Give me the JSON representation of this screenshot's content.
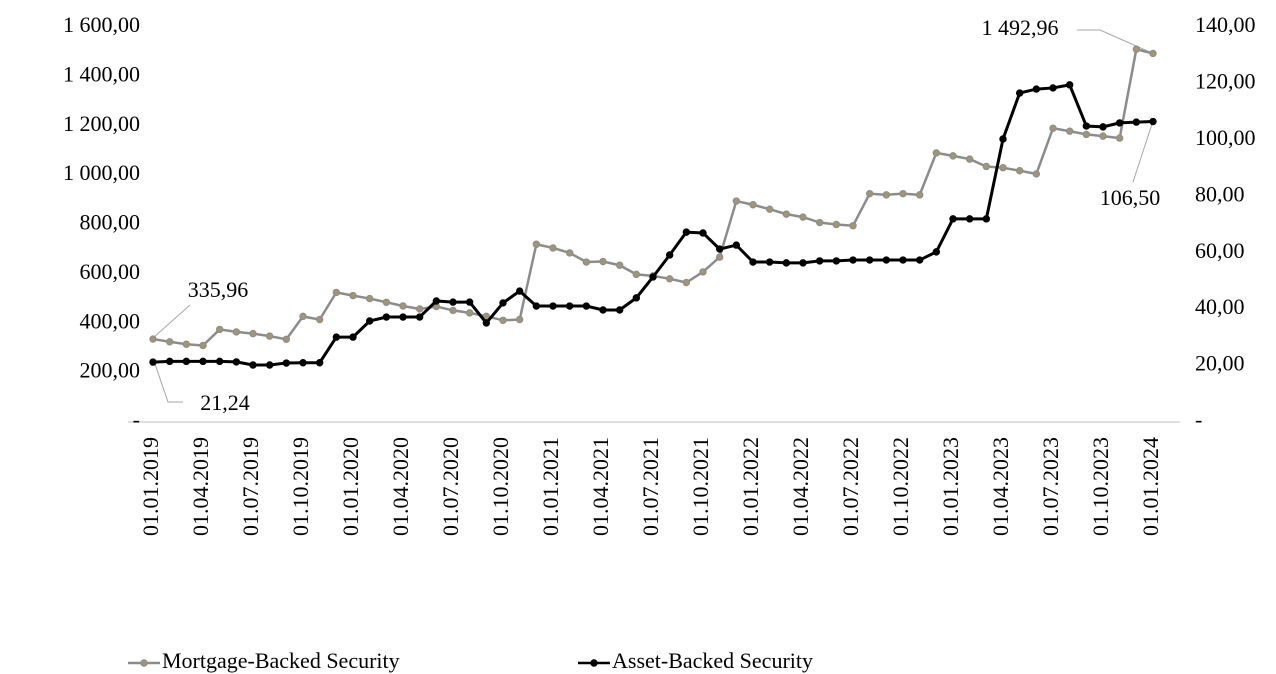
{
  "chart_data": {
    "type": "line",
    "categories": [
      "01.01.2019",
      null,
      null,
      "01.04.2019",
      null,
      null,
      "01.07.2019",
      null,
      null,
      "01.10.2019",
      null,
      null,
      "01.01.2020",
      null,
      null,
      "01.04.2020",
      null,
      null,
      "01.07.2020",
      null,
      null,
      "01.10.2020",
      null,
      null,
      "01.01.2021",
      null,
      null,
      "01.04.2021",
      null,
      null,
      "01.07.2021",
      null,
      null,
      "01.10.2021",
      null,
      null,
      "01.01.2022",
      null,
      null,
      "01.04.2022",
      null,
      null,
      "01.07.2022",
      null,
      null,
      "01.10.2022",
      null,
      null,
      "01.01.2023",
      null,
      null,
      "01.04.2023",
      null,
      null,
      "01.07.2023",
      null,
      null,
      "01.10.2023",
      null,
      null,
      "01.01.2024"
    ],
    "series": [
      {
        "name": "Mortgage-Backed Security",
        "color": "#8c8c8c",
        "marker_color": "#a39478",
        "values": [
          335.96,
          325,
          315,
          310,
          375,
          365,
          358,
          348,
          335,
          428,
          415,
          525,
          512,
          500,
          485,
          470,
          458,
          468,
          452,
          442,
          428,
          412,
          415,
          720,
          705,
          685,
          648,
          650,
          635,
          598,
          592,
          580,
          565,
          608,
          668,
          895,
          880,
          862,
          842,
          830,
          808,
          800,
          795,
          925,
          920,
          925,
          920,
          1090,
          1078,
          1065,
          1035,
          1030,
          1018,
          1005,
          1190,
          1178,
          1165,
          1158,
          1150,
          1510,
          1492.96
        ],
        "value_labels": [
          "335,96",
          null,
          null,
          null,
          null,
          null,
          null,
          null,
          null,
          null,
          null,
          null,
          null,
          null,
          null,
          null,
          null,
          null,
          null,
          null,
          null,
          null,
          null,
          null,
          null,
          null,
          null,
          null,
          null,
          null,
          null,
          null,
          null,
          null,
          null,
          null,
          null,
          null,
          null,
          null,
          null,
          null,
          null,
          null,
          null,
          null,
          null,
          null,
          null,
          null,
          null,
          null,
          null,
          null,
          null,
          null,
          null,
          null,
          null,
          null,
          "1 492,96"
        ]
      },
      {
        "name": "Asset-Backed Security",
        "color": "#000000",
        "marker_color": "#000000",
        "axis": "y2",
        "values": [
          21.24,
          21.5,
          21.5,
          21.5,
          21.5,
          21.3,
          20.2,
          20.2,
          20.9,
          21,
          21,
          30.1,
          30.1,
          35.8,
          37.2,
          37.2,
          37.2,
          42.9,
          42.5,
          42.5,
          35.1,
          42.2,
          46.4,
          41.1,
          41.1,
          41.1,
          41.1,
          39.7,
          39.7,
          44,
          51.4,
          59.2,
          67.3,
          67,
          61.3,
          62.7,
          56.7,
          56.7,
          56.4,
          56.4,
          57.1,
          57.1,
          57.4,
          57.4,
          57.4,
          57.4,
          57.4,
          60.3,
          72,
          72,
          72,
          100.3,
          116.6,
          118,
          118.4,
          119.5,
          104.9,
          104.6,
          106,
          106.3,
          106.5
        ],
        "value_labels": [
          "21,24",
          null,
          null,
          null,
          null,
          null,
          null,
          null,
          null,
          null,
          null,
          null,
          null,
          null,
          null,
          null,
          null,
          null,
          null,
          null,
          null,
          null,
          null,
          null,
          null,
          null,
          null,
          null,
          null,
          null,
          null,
          null,
          null,
          null,
          null,
          null,
          null,
          null,
          null,
          null,
          null,
          null,
          null,
          null,
          null,
          null,
          null,
          null,
          null,
          null,
          null,
          null,
          null,
          null,
          null,
          null,
          null,
          null,
          null,
          null,
          "106,50"
        ]
      }
    ],
    "ylim": [
      0,
      1600
    ],
    "yticks": [
      {
        "value": 0,
        "label": "-"
      },
      {
        "value": 200,
        "label": "200,00"
      },
      {
        "value": 400,
        "label": "400,00"
      },
      {
        "value": 600,
        "label": "600,00"
      },
      {
        "value": 800,
        "label": "800,00"
      },
      {
        "value": 1000,
        "label": "1 000,00"
      },
      {
        "value": 1200,
        "label": "1 200,00"
      },
      {
        "value": 1400,
        "label": "1 400,00"
      },
      {
        "value": 1600,
        "label": "1 600,00"
      }
    ],
    "y2lim": [
      0,
      140
    ],
    "y2ticks": [
      {
        "value": 0,
        "label": "-"
      },
      {
        "value": 20,
        "label": "20,00"
      },
      {
        "value": 40,
        "label": "40,00"
      },
      {
        "value": 60,
        "label": "60,00"
      },
      {
        "value": 80,
        "label": "80,00"
      },
      {
        "value": 100,
        "label": "100,00"
      },
      {
        "value": 120,
        "label": "120,00"
      },
      {
        "value": 140,
        "label": "140,00"
      }
    ],
    "legend": "bottom"
  }
}
